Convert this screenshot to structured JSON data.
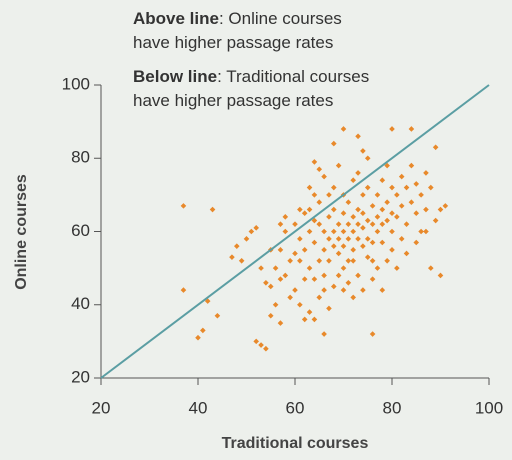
{
  "chart_data": {
    "type": "scatter",
    "annotations": [
      {
        "bold": "Above line",
        "lines": [
          ": Online courses",
          "have higher passage rates"
        ]
      },
      {
        "bold": "Below line",
        "lines": [
          ": Traditional courses",
          "have higher passage rates"
        ]
      }
    ],
    "xlabel": "Traditional courses",
    "ylabel": "Online courses",
    "xlim": [
      20,
      100
    ],
    "ylim": [
      20,
      100
    ],
    "xticks": [
      20,
      40,
      60,
      80,
      100
    ],
    "yticks": [
      20,
      40,
      60,
      80,
      100
    ],
    "color": "#e8892b",
    "reference_line": {
      "x": [
        20,
        100
      ],
      "y": [
        20,
        100
      ],
      "color": "#5b9ea3"
    },
    "x": [
      37,
      43,
      37,
      41,
      40,
      42,
      44,
      47,
      48,
      49,
      50,
      51,
      52,
      53,
      54,
      52,
      55,
      57,
      76,
      66,
      90,
      88,
      84,
      80,
      70,
      73,
      64,
      89,
      91,
      90,
      55,
      56,
      57,
      58,
      58,
      59,
      60,
      60,
      61,
      61,
      62,
      62,
      63,
      63,
      63,
      64,
      64,
      64,
      65,
      65,
      65,
      65,
      66,
      66,
      66,
      66,
      67,
      67,
      67,
      67,
      68,
      68,
      68,
      68,
      68,
      69,
      69,
      69,
      69,
      70,
      70,
      70,
      70,
      70,
      71,
      71,
      71,
      71,
      72,
      72,
      72,
      72,
      72,
      73,
      73,
      73,
      73,
      74,
      74,
      74,
      74,
      75,
      75,
      75,
      75,
      75,
      76,
      76,
      76,
      77,
      77,
      77,
      77,
      78,
      78,
      78,
      78,
      79,
      79,
      79,
      80,
      80,
      80,
      80,
      81,
      81,
      82,
      82,
      82,
      83,
      83,
      84,
      84,
      85,
      85,
      86,
      86,
      87,
      87,
      88,
      89,
      57,
      59,
      60,
      62,
      63,
      61,
      64,
      66,
      69,
      71,
      73,
      76,
      78,
      74,
      68,
      65,
      58,
      56,
      54,
      53,
      55,
      57,
      62,
      64,
      70,
      72,
      74,
      79,
      81,
      83,
      85,
      87,
      76,
      67,
      63,
      61
    ],
    "values": [
      67,
      66,
      44,
      33,
      31,
      41,
      37,
      53,
      56,
      52,
      58,
      60,
      61,
      29,
      28,
      30,
      37,
      35,
      32,
      32,
      48,
      50,
      88,
      88,
      88,
      86,
      79,
      83,
      67,
      66,
      45,
      50,
      55,
      60,
      48,
      52,
      62,
      44,
      58,
      40,
      55,
      65,
      50,
      60,
      38,
      57,
      70,
      47,
      52,
      62,
      68,
      42,
      55,
      60,
      75,
      48,
      58,
      64,
      52,
      39,
      60,
      66,
      56,
      45,
      72,
      62,
      54,
      58,
      78,
      60,
      65,
      50,
      70,
      56,
      62,
      58,
      68,
      46,
      64,
      60,
      55,
      74,
      52,
      66,
      58,
      62,
      48,
      61,
      70,
      56,
      65,
      63,
      58,
      72,
      53,
      80,
      62,
      67,
      57,
      64,
      70,
      60,
      50,
      66,
      62,
      74,
      57,
      68,
      63,
      78,
      65,
      60,
      72,
      55,
      70,
      64,
      67,
      75,
      58,
      72,
      62,
      68,
      78,
      65,
      73,
      70,
      60,
      76,
      66,
      72,
      63,
      62,
      42,
      54,
      47,
      66,
      52,
      63,
      44,
      48,
      52,
      76,
      47,
      44,
      82,
      84,
      77,
      64,
      40,
      46,
      50,
      55,
      47,
      36,
      36,
      44,
      42,
      44,
      52,
      50,
      54,
      57,
      60,
      52,
      70,
      72,
      66
    ]
  }
}
